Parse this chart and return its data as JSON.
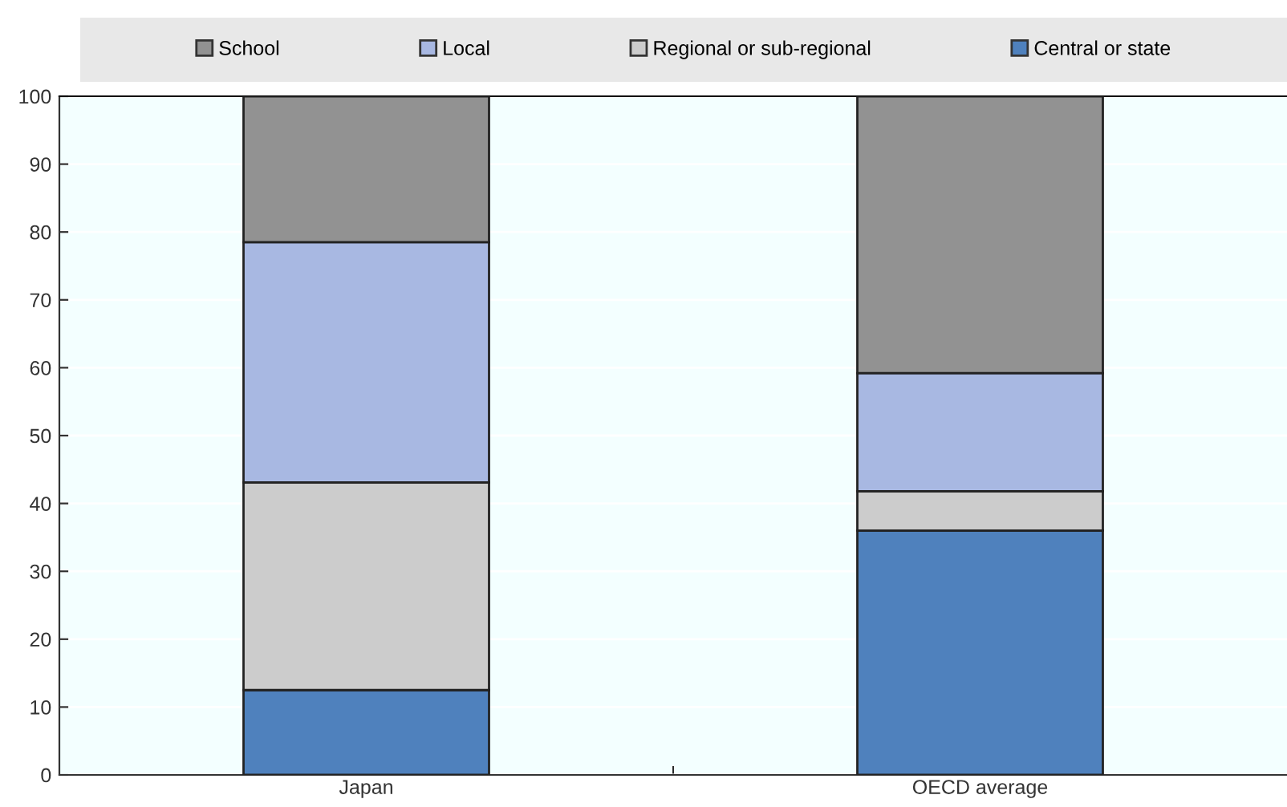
{
  "chart_data": {
    "type": "bar",
    "stacked": true,
    "categories": [
      "Japan",
      "OECD average"
    ],
    "series": [
      {
        "name": "Central or state",
        "color": "#4f81bd",
        "values": [
          12.5,
          36.0
        ]
      },
      {
        "name": "Regional or sub-regional",
        "color": "#cccccc",
        "values": [
          30.6,
          5.8
        ]
      },
      {
        "name": "Local",
        "color": "#a8b8e2",
        "values": [
          35.4,
          17.4
        ]
      },
      {
        "name": "School",
        "color": "#929292",
        "values": [
          21.5,
          40.8
        ]
      }
    ],
    "ylim": [
      0,
      100
    ],
    "yticks": [
      0,
      10,
      20,
      30,
      40,
      50,
      60,
      70,
      80,
      90,
      100
    ],
    "grid": "y",
    "legend": "top"
  }
}
